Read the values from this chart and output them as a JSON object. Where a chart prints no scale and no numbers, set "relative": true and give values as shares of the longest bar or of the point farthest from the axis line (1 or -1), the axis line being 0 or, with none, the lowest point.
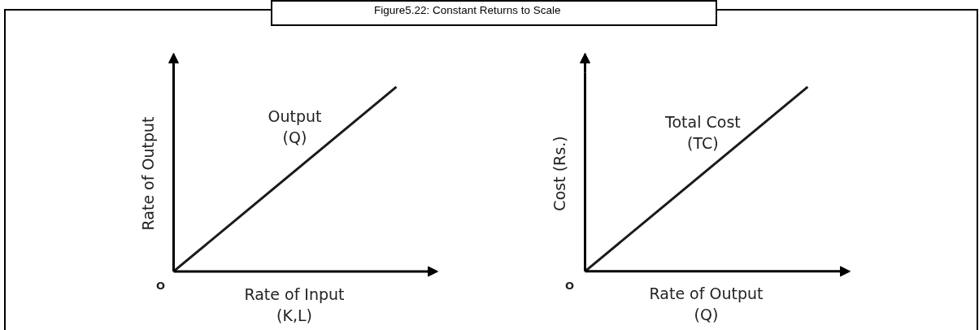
{
  "chart_data": [
    {
      "type": "line",
      "title": "Figure5.22: Constant Returns to Scale",
      "xlabel": "Rate of Input\n(K,L)",
      "ylabel": "Rate of Output",
      "categories": [
        null,
        null
      ],
      "relative": true,
      "legend": false,
      "marker": "none",
      "line_style": "solid",
      "series": [
        {
          "name": "Output\n(Q)",
          "color": "#1a1a1a",
          "values": [
            0,
            1
          ]
        }
      ],
      "annotations": [
        "O"
      ]
    },
    {
      "type": "line",
      "xlabel": "Rate of Output\n(Q)",
      "ylabel": "Cost (Rs.)",
      "categories": [
        null,
        null
      ],
      "relative": true,
      "legend": false,
      "marker": "none",
      "line_style": "solid",
      "series": [
        {
          "name": "Total Cost\n(TC)",
          "color": "#1a1a1a",
          "values": [
            0,
            1
          ]
        }
      ],
      "annotations": [
        "O"
      ]
    }
  ]
}
